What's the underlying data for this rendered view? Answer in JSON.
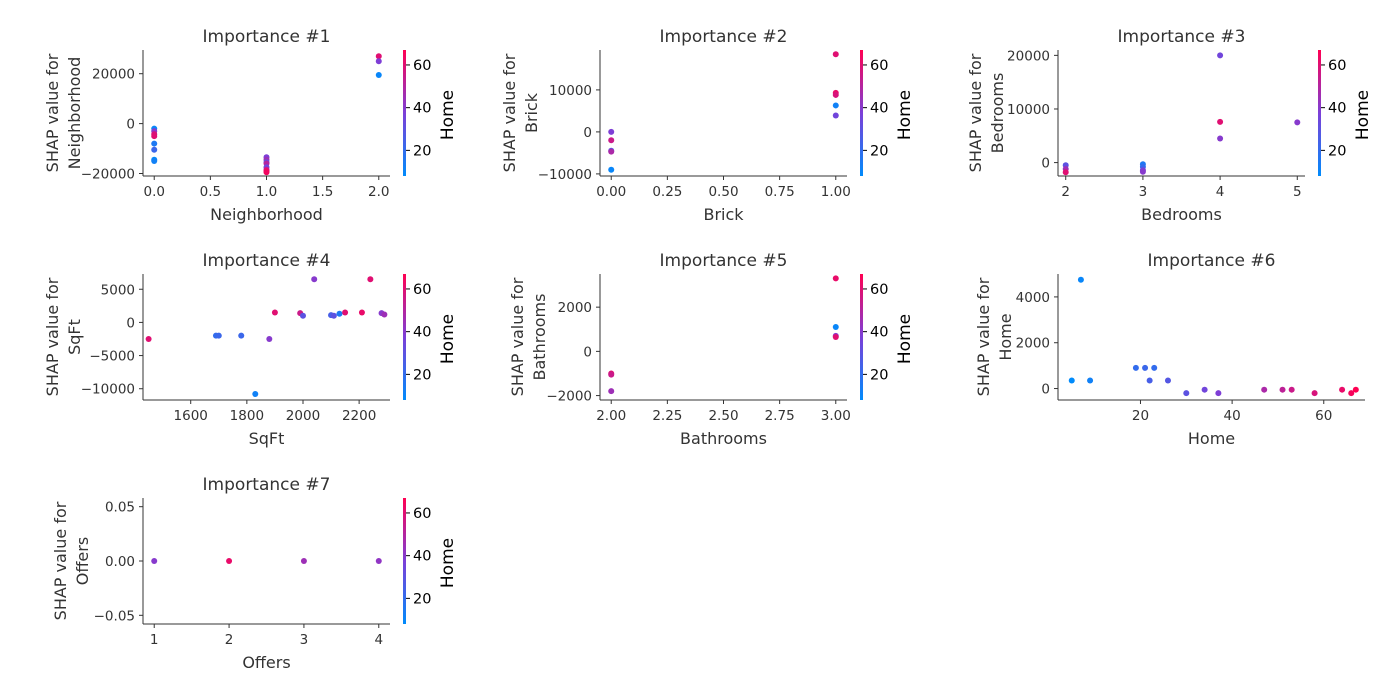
{
  "colors": {
    "low": "#008bfb",
    "mid": "#7c3fd8",
    "high": "#ff0052"
  },
  "chart_data": [
    {
      "type": "scatter",
      "title": "Importance #1",
      "xlabel": "Neighborhood",
      "ylabel": [
        "SHAP value for",
        "Neighborhood"
      ],
      "xlim": [
        -0.1,
        2.1
      ],
      "ylim": [
        -21000,
        29500
      ],
      "xticks": [
        0.0,
        0.5,
        1.0,
        1.5,
        2.0
      ],
      "xtick_labels": [
        "0.0",
        "0.5",
        "1.0",
        "1.5",
        "2.0"
      ],
      "yticks": [
        -20000,
        0,
        20000
      ],
      "ytick_labels": [
        "−20000",
        "0",
        "20000"
      ],
      "colorbar": {
        "label": "Home",
        "ticks": [
          20,
          40,
          60
        ],
        "range": [
          8,
          67
        ]
      },
      "points": [
        [
          0,
          -2000,
          10
        ],
        [
          0,
          -3000,
          40
        ],
        [
          0,
          -4200,
          58
        ],
        [
          0,
          -5000,
          60
        ],
        [
          0,
          -8000,
          15
        ],
        [
          0,
          -10500,
          22
        ],
        [
          0,
          -14500,
          8
        ],
        [
          0,
          -15000,
          12
        ],
        [
          1,
          -13500,
          38
        ],
        [
          1,
          -14500,
          45
        ],
        [
          1,
          -15500,
          30
        ],
        [
          1,
          -16000,
          50
        ],
        [
          1,
          -17500,
          35
        ],
        [
          1,
          -18500,
          55
        ],
        [
          1,
          -19000,
          62
        ],
        [
          1,
          -19500,
          64
        ],
        [
          2,
          27000,
          60
        ],
        [
          2,
          25000,
          38
        ],
        [
          2,
          19500,
          10
        ]
      ]
    },
    {
      "type": "scatter",
      "title": "Importance #2",
      "xlabel": "Brick",
      "ylabel": [
        "SHAP value for",
        "Brick"
      ],
      "xlim": [
        -0.05,
        1.05
      ],
      "ylim": [
        -10500,
        19500
      ],
      "xticks": [
        0.0,
        0.25,
        0.5,
        0.75,
        1.0
      ],
      "xtick_labels": [
        "0.00",
        "0.25",
        "0.50",
        "0.75",
        "1.00"
      ],
      "yticks": [
        -10000,
        0,
        10000
      ],
      "ytick_labels": [
        "−10000",
        "0",
        "10000"
      ],
      "colorbar": {
        "label": "Home",
        "ticks": [
          20,
          40,
          60
        ],
        "range": [
          8,
          67
        ]
      },
      "points": [
        [
          0,
          0,
          38
        ],
        [
          0,
          -2000,
          55
        ],
        [
          0,
          -4500,
          30
        ],
        [
          0,
          -4700,
          48
        ],
        [
          0,
          -9000,
          10
        ],
        [
          1,
          18500,
          60
        ],
        [
          1,
          9300,
          62
        ],
        [
          1,
          8800,
          58
        ],
        [
          1,
          6300,
          12
        ],
        [
          1,
          3900,
          35
        ]
      ]
    },
    {
      "type": "scatter",
      "title": "Importance #3",
      "xlabel": "Bedrooms",
      "ylabel": [
        "SHAP value for",
        "Bedrooms"
      ],
      "xlim": [
        1.9,
        5.1
      ],
      "ylim": [
        -2500,
        21000
      ],
      "xticks": [
        2,
        3,
        4,
        5
      ],
      "xtick_labels": [
        "2",
        "3",
        "4",
        "5"
      ],
      "yticks": [
        0,
        10000,
        20000
      ],
      "ytick_labels": [
        "0",
        "10000",
        "20000"
      ],
      "colorbar": {
        "label": "Home",
        "ticks": [
          20,
          40,
          60
        ],
        "range": [
          8,
          67
        ]
      },
      "points": [
        [
          2,
          -500,
          30
        ],
        [
          2,
          -1200,
          45
        ],
        [
          2,
          -1800,
          60
        ],
        [
          3,
          -300,
          15
        ],
        [
          3,
          -800,
          20
        ],
        [
          3,
          -1400,
          35
        ],
        [
          3,
          -1700,
          40
        ],
        [
          4,
          20000,
          35
        ],
        [
          4,
          7600,
          60
        ],
        [
          4,
          4500,
          40
        ],
        [
          5,
          7500,
          40
        ]
      ]
    },
    {
      "type": "scatter",
      "title": "Importance #4",
      "xlabel": "SqFt",
      "ylabel": [
        "SHAP value for",
        "SqFt"
      ],
      "xlim": [
        1430,
        2310
      ],
      "ylim": [
        -11700,
        7300
      ],
      "xticks": [
        1600,
        1800,
        2000,
        2200
      ],
      "xtick_labels": [
        "1600",
        "1800",
        "2000",
        "2200"
      ],
      "yticks": [
        -10000,
        -5000,
        0,
        5000
      ],
      "ytick_labels": [
        "−10000",
        "−5000",
        "0",
        "5000"
      ],
      "colorbar": {
        "label": "Home",
        "ticks": [
          20,
          40,
          60
        ],
        "range": [
          8,
          67
        ]
      },
      "points": [
        [
          1450,
          -2500,
          60
        ],
        [
          1690,
          -2000,
          20
        ],
        [
          1700,
          -2000,
          22
        ],
        [
          1780,
          -2000,
          22
        ],
        [
          1830,
          -10800,
          12
        ],
        [
          1880,
          -2500,
          40
        ],
        [
          1900,
          1500,
          60
        ],
        [
          1990,
          1400,
          55
        ],
        [
          2000,
          1000,
          30
        ],
        [
          2040,
          6500,
          40
        ],
        [
          2100,
          1100,
          25
        ],
        [
          2110,
          1000,
          30
        ],
        [
          2130,
          1300,
          15
        ],
        [
          2150,
          1500,
          60
        ],
        [
          2210,
          1500,
          62
        ],
        [
          2240,
          6500,
          60
        ],
        [
          2280,
          1400,
          40
        ],
        [
          2290,
          1200,
          45
        ]
      ]
    },
    {
      "type": "scatter",
      "title": "Importance #5",
      "xlabel": "Bathrooms",
      "ylabel": [
        "SHAP value for",
        "Bathrooms"
      ],
      "xlim": [
        1.95,
        3.05
      ],
      "ylim": [
        -2200,
        3500
      ],
      "xticks": [
        2.0,
        2.25,
        2.5,
        2.75,
        3.0
      ],
      "xtick_labels": [
        "2.00",
        "2.25",
        "2.50",
        "2.75",
        "3.00"
      ],
      "yticks": [
        -2000,
        0,
        2000
      ],
      "ytick_labels": [
        "−2000",
        "0",
        "2000"
      ],
      "colorbar": {
        "label": "Home",
        "ticks": [
          20,
          40,
          60
        ],
        "range": [
          8,
          67
        ]
      },
      "points": [
        [
          2,
          -1000,
          60
        ],
        [
          2,
          -1050,
          55
        ],
        [
          2,
          -1800,
          45
        ],
        [
          3,
          3300,
          62
        ],
        [
          3,
          1100,
          10
        ],
        [
          3,
          700,
          40
        ],
        [
          3,
          650,
          60
        ]
      ]
    },
    {
      "type": "scatter",
      "title": "Importance #6",
      "xlabel": "Home",
      "ylabel": [
        "SHAP value for",
        "Home"
      ],
      "xlim": [
        2,
        69
      ],
      "ylim": [
        -500,
        5000
      ],
      "xticks": [
        20,
        40,
        60
      ],
      "xtick_labels": [
        "20",
        "40",
        "60"
      ],
      "yticks": [
        0,
        2000,
        4000
      ],
      "ytick_labels": [
        "0",
        "2000",
        "4000"
      ],
      "colorbar": null,
      "points": [
        [
          5,
          350,
          8
        ],
        [
          7,
          4750,
          10
        ],
        [
          9,
          350,
          12
        ],
        [
          19,
          900,
          20
        ],
        [
          21,
          900,
          22
        ],
        [
          22,
          350,
          25
        ],
        [
          23,
          900,
          20
        ],
        [
          26,
          350,
          28
        ],
        [
          30,
          -200,
          30
        ],
        [
          34,
          -50,
          35
        ],
        [
          37,
          -200,
          38
        ],
        [
          47,
          -50,
          48
        ],
        [
          51,
          -50,
          52
        ],
        [
          53,
          -50,
          55
        ],
        [
          58,
          -200,
          58
        ],
        [
          64,
          -50,
          62
        ],
        [
          66,
          -200,
          65
        ],
        [
          67,
          -50,
          67
        ]
      ]
    },
    {
      "type": "scatter",
      "title": "Importance #7",
      "xlabel": "Offers",
      "ylabel": [
        "SHAP value for",
        "Offers"
      ],
      "xlim": [
        0.85,
        4.15
      ],
      "ylim": [
        -0.058,
        0.058
      ],
      "xticks": [
        1,
        2,
        3,
        4
      ],
      "xtick_labels": [
        "1",
        "2",
        "3",
        "4"
      ],
      "yticks": [
        -0.05,
        0.0,
        0.05
      ],
      "ytick_labels": [
        "−0.05",
        "0.00",
        "0.05"
      ],
      "colorbar": {
        "label": "Home",
        "ticks": [
          20,
          40,
          60
        ],
        "range": [
          8,
          67
        ]
      },
      "points": [
        [
          1,
          0,
          40
        ],
        [
          2,
          0,
          62
        ],
        [
          3,
          0,
          45
        ],
        [
          4,
          0,
          42
        ]
      ]
    }
  ]
}
